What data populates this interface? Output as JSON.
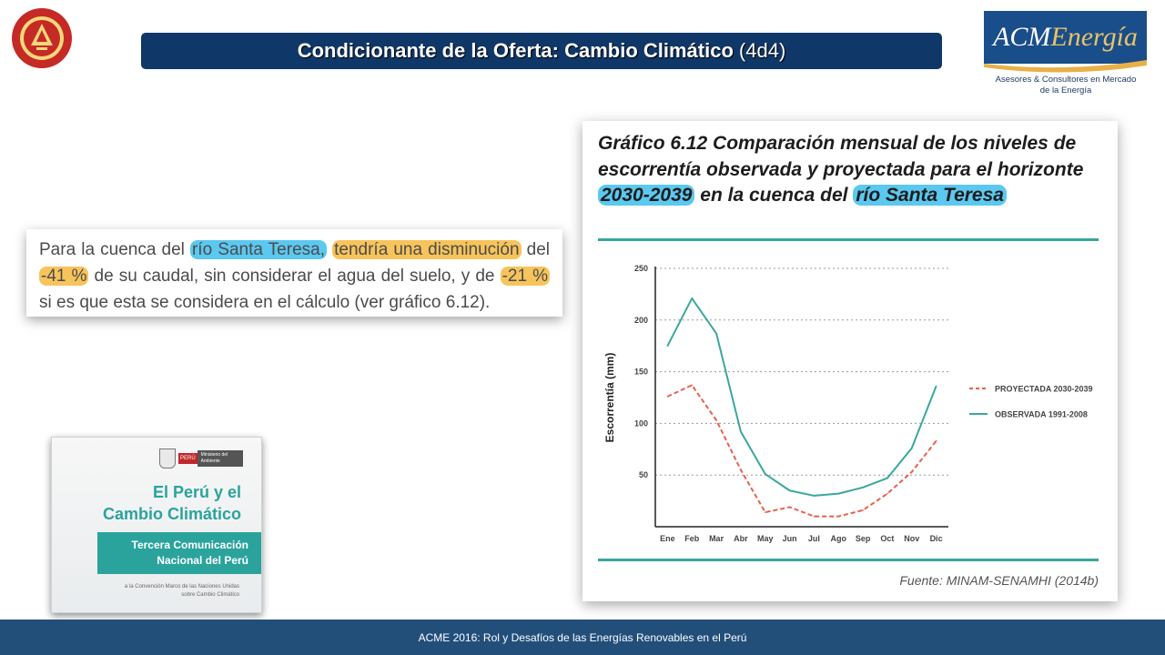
{
  "header": {
    "title_bold": "Condicionante de la Oferta: Cambio Climático",
    "title_suffix": "(4d4)"
  },
  "logo": {
    "brand_a": "ACM",
    "brand_b": "Energía",
    "tagline_line1": "Asesores & Consultores en Mercado",
    "tagline_line2": "de la Energía"
  },
  "quote": {
    "p1": "Para la cuenca del ",
    "h1": "río Santa Teresa,",
    "p2": " ",
    "h2": "tendría una disminución",
    "p3": " del ",
    "h3": "-41 %",
    "p4": " de su caudal, sin considerar el agua del suelo, y de ",
    "h4": "-21 %",
    "p5": " si es que esta se considera en el cálculo (ver gráfico 6.12)."
  },
  "cover": {
    "ministry_tag": "PERÚ",
    "ministry": "Ministerio del Ambiente",
    "title_line1": "El Perú y el",
    "title_line2": "Cambio Climático",
    "band_line1": "Tercera Comunicación",
    "band_line2": "Nacional del Perú",
    "small_line1": "a la Convención Marco de las Naciones Unidas",
    "small_line2": "sobre Cambio Climático"
  },
  "chart_card": {
    "title_p1": "Gráfico 6.12 Comparación mensual de los niveles de escorrentía observada y proyectada para el horizonte ",
    "title_h1": "2030-2039",
    "title_p2": " en la cuenca del ",
    "title_h2": "río Santa Teresa",
    "source": "Fuente: MINAM-SENAMHI (2014b)"
  },
  "chart_data": {
    "type": "line",
    "categories": [
      "Ene",
      "Feb",
      "Mar",
      "Abr",
      "May",
      "Jun",
      "Jul",
      "Ago",
      "Sep",
      "Oct",
      "Nov",
      "Dic"
    ],
    "series": [
      {
        "name": "PROYECTADA 2030-2039",
        "color": "#e8604c",
        "dashed": true,
        "values": [
          126,
          137,
          103,
          55,
          14,
          19,
          10,
          10,
          16,
          32,
          53,
          83
        ]
      },
      {
        "name": "OBSERVADA 1991-2008",
        "color": "#3aa79c",
        "dashed": false,
        "values": [
          175,
          221,
          187,
          92,
          51,
          35,
          30,
          32,
          38,
          47,
          76,
          136
        ]
      }
    ],
    "ylabel": "Escorrentía (mm)",
    "yticks": [
      50,
      100,
      150,
      200,
      250
    ],
    "ylim": [
      0,
      250
    ],
    "grid": true,
    "legend": "right"
  },
  "footer": {
    "text": "ACME 2016:  Rol y Desafíos de las Energías Renovables en el Perú"
  }
}
